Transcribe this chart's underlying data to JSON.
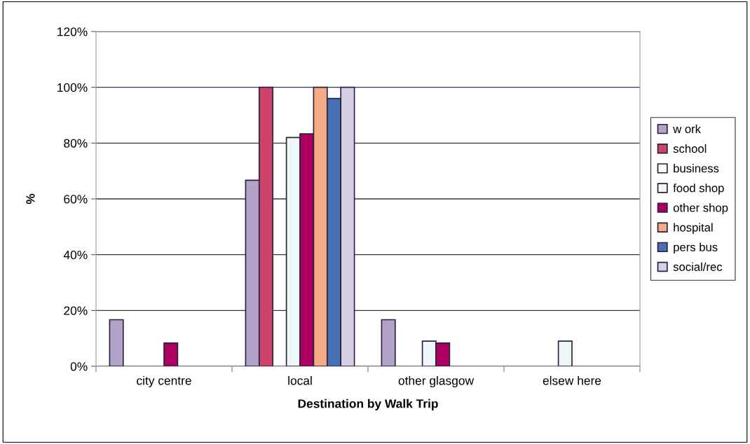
{
  "chart_data": {
    "type": "bar",
    "xlabel": "Destination by Walk Trip",
    "ylabel": "%",
    "categories": [
      "city centre",
      "local",
      "other glasgow",
      "elsew here"
    ],
    "series": [
      {
        "name": "w ork",
        "color": "#b3a2c8",
        "values": [
          16.7,
          66.7,
          16.7,
          null
        ]
      },
      {
        "name": "school",
        "color": "#cc4469",
        "values": [
          null,
          100,
          null,
          null
        ]
      },
      {
        "name": "business",
        "color": "#fffbef",
        "values": [
          null,
          null,
          null,
          null
        ]
      },
      {
        "name": "food shop",
        "color": "#eef6f8",
        "values": [
          null,
          82,
          9,
          9
        ]
      },
      {
        "name": "other shop",
        "color": "#ab0062",
        "values": [
          8.3,
          83.3,
          8.3,
          null
        ]
      },
      {
        "name": "hospital",
        "color": "#f4ab86",
        "values": [
          null,
          100,
          null,
          null
        ]
      },
      {
        "name": "pers bus",
        "color": "#4870b4",
        "values": [
          null,
          96,
          null,
          null
        ]
      },
      {
        "name": "social/rec",
        "color": "#d8cfe5",
        "values": [
          null,
          100,
          null,
          null
        ]
      }
    ],
    "ylim": [
      0,
      120
    ],
    "yticks": [
      {
        "value": 0,
        "label": "0%"
      },
      {
        "value": 20,
        "label": "20%"
      },
      {
        "value": 40,
        "label": "40%"
      },
      {
        "value": 60,
        "label": "60%"
      },
      {
        "value": 80,
        "label": "80%"
      },
      {
        "value": 100,
        "label": "100%"
      },
      {
        "value": 120,
        "label": "120%"
      }
    ],
    "grid": "y",
    "legend": "right"
  }
}
